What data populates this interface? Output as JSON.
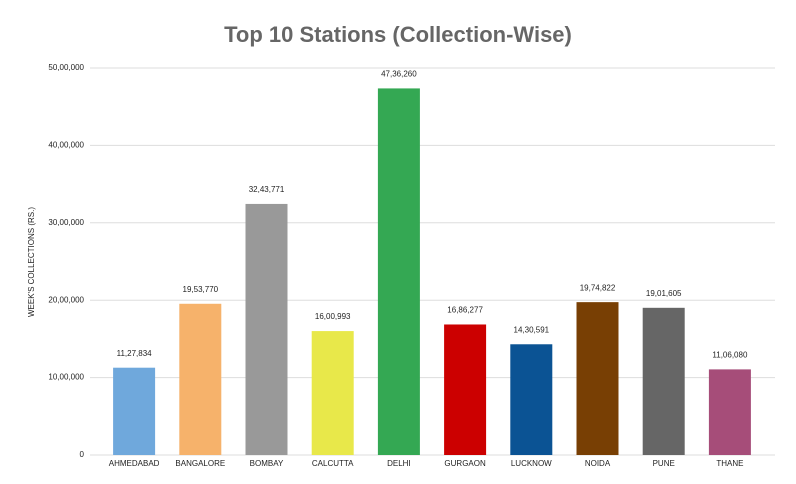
{
  "chart_data": {
    "type": "bar",
    "title": "Top 10 Stations (Collection-Wise)",
    "y_label": "WEEK'S COLLECTIONS (RS.)",
    "categories": [
      "AHMEDABAD",
      "BANGALORE",
      "BOMBAY",
      "CALCUTTA",
      "DELHI",
      "GURGAON",
      "LUCKNOW",
      "NOIDA",
      "PUNE",
      "THANE"
    ],
    "values": [
      1127834,
      1953770,
      3243771,
      1600993,
      4736260,
      1686277,
      1430591,
      1974822,
      1901605,
      1106080
    ],
    "value_labels": [
      "11,27,834",
      "19,53,770",
      "32,43,771",
      "16,00,993",
      "47,36,260",
      "16,86,277",
      "14,30,591",
      "19,74,822",
      "19,01,605",
      "11,06,080"
    ],
    "colors": [
      "#6fa8dc",
      "#f6b26b",
      "#999999",
      "#e8e84a",
      "#34a853",
      "#cc0000",
      "#0b5394",
      "#783f04",
      "#666666",
      "#a64d79"
    ],
    "ylim": [
      0,
      5000000
    ],
    "yticks": [
      0,
      {
        "value": 1000000,
        "label": "10,00,000"
      },
      {
        "value": 2000000,
        "label": "20,00,000"
      },
      {
        "value": 3000000,
        "label": "30,00,000"
      },
      {
        "value": 4000000,
        "label": "40,00,000"
      },
      {
        "value": 5000000,
        "label": "50,00,000"
      }
    ],
    "grid": true
  }
}
